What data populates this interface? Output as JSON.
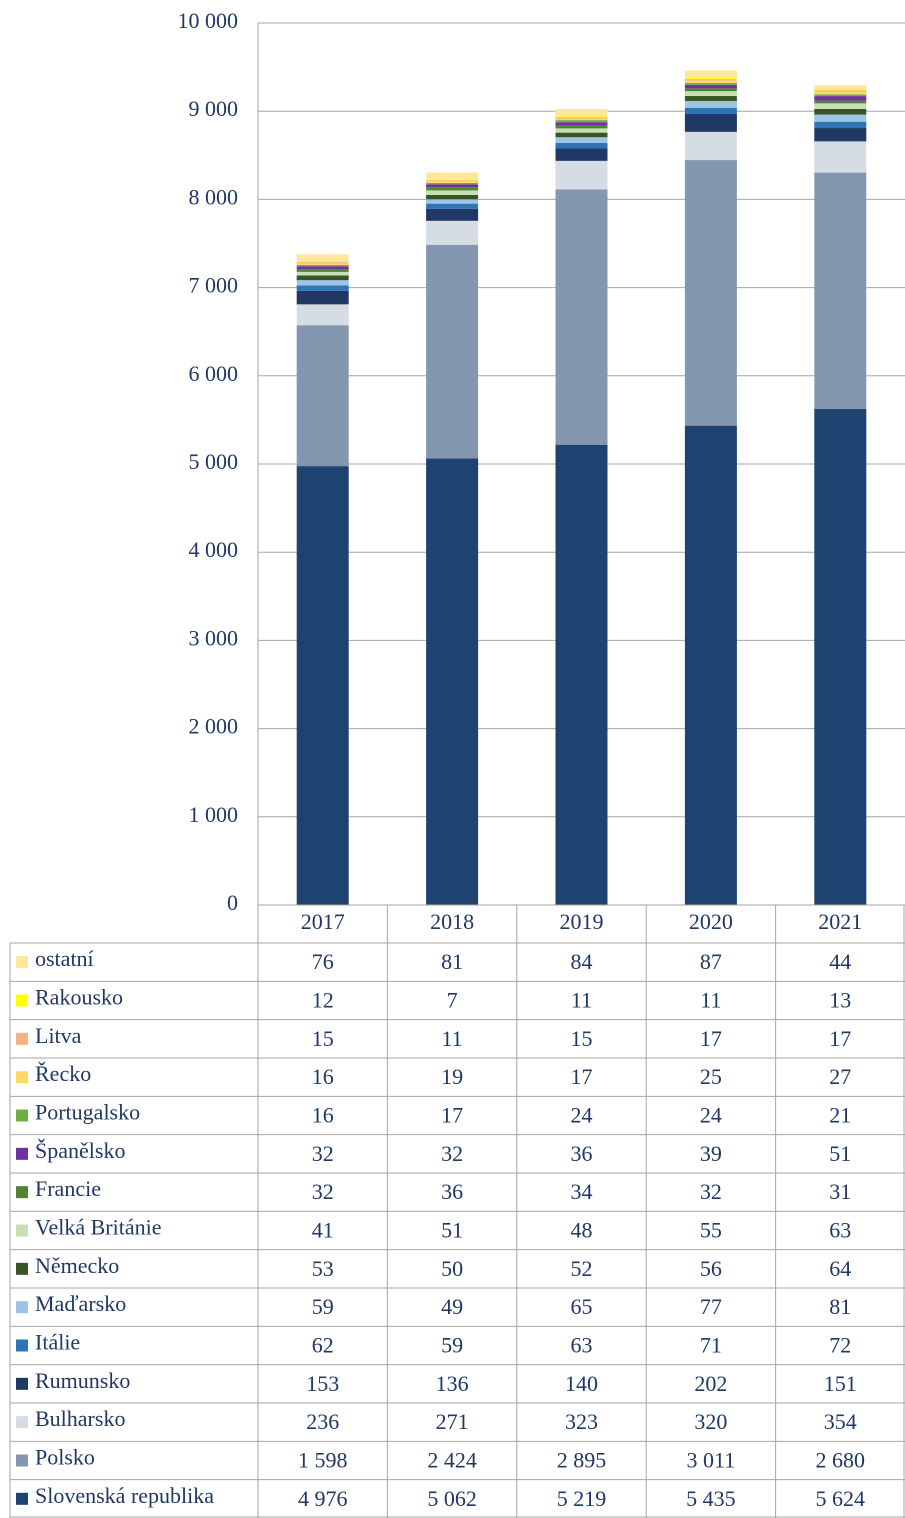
{
  "chart_data": {
    "type": "stacked_bar",
    "categories": [
      "2017",
      "2018",
      "2019",
      "2020",
      "2021"
    ],
    "ylim": [
      0,
      10000
    ],
    "yticks": [
      0,
      {
        "value": 1000,
        "label": "1 000"
      },
      {
        "value": 2000,
        "label": "2 000"
      },
      {
        "value": 3000,
        "label": "3 000"
      },
      {
        "value": 4000,
        "label": "4 000"
      },
      {
        "value": 5000,
        "label": "5 000"
      },
      {
        "value": 6000,
        "label": "6 000"
      },
      {
        "value": 7000,
        "label": "7 000"
      },
      {
        "value": 8000,
        "label": "8 000"
      },
      {
        "value": 9000,
        "label": "9 000"
      },
      {
        "value": 10000,
        "label": "10 000"
      }
    ],
    "grid": true,
    "series": [
      {
        "name": "Slovenská republika",
        "color": "#1f4370",
        "values": [
          4976,
          5062,
          5219,
          5435,
          5624
        ],
        "value_labels": [
          "4 976",
          "5 062",
          "5 219",
          "5 435",
          "5 624"
        ]
      },
      {
        "name": "Polsko",
        "color": "#8497b0",
        "values": [
          1598,
          2424,
          2895,
          3011,
          2680
        ],
        "value_labels": [
          "1 598",
          "2 424",
          "2 895",
          "3 011",
          "2 680"
        ]
      },
      {
        "name": "Bulharsko",
        "color": "#d6dce4",
        "values": [
          236,
          271,
          323,
          320,
          354
        ]
      },
      {
        "name": "Rumunsko",
        "color": "#1f3864",
        "values": [
          153,
          136,
          140,
          202,
          151
        ]
      },
      {
        "name": "Itálie",
        "color": "#2e75b6",
        "values": [
          62,
          59,
          63,
          71,
          72
        ]
      },
      {
        "name": "Maďarsko",
        "color": "#9dc3e6",
        "values": [
          59,
          49,
          65,
          77,
          81
        ]
      },
      {
        "name": "Německo",
        "color": "#375623",
        "values": [
          53,
          50,
          52,
          56,
          64
        ]
      },
      {
        "name": "Velká Británie",
        "color": "#c5e0b4",
        "values": [
          41,
          51,
          48,
          55,
          63
        ]
      },
      {
        "name": "Francie",
        "color": "#548235",
        "values": [
          32,
          36,
          34,
          32,
          31
        ]
      },
      {
        "name": "Španělsko",
        "color": "#7030a0",
        "values": [
          32,
          32,
          36,
          39,
          51
        ]
      },
      {
        "name": "Portugalsko",
        "color": "#70ad47",
        "values": [
          16,
          17,
          24,
          24,
          21
        ]
      },
      {
        "name": "Řecko",
        "color": "#ffd966",
        "values": [
          16,
          19,
          17,
          25,
          27
        ]
      },
      {
        "name": "Litva",
        "color": "#f4b183",
        "values": [
          15,
          11,
          15,
          17,
          17
        ]
      },
      {
        "name": "Rakousko",
        "color": "#ffff00",
        "values": [
          12,
          7,
          11,
          11,
          13
        ]
      },
      {
        "name": "ostatní",
        "color": "#ffe699",
        "values": [
          76,
          81,
          84,
          87,
          44
        ]
      }
    ]
  }
}
